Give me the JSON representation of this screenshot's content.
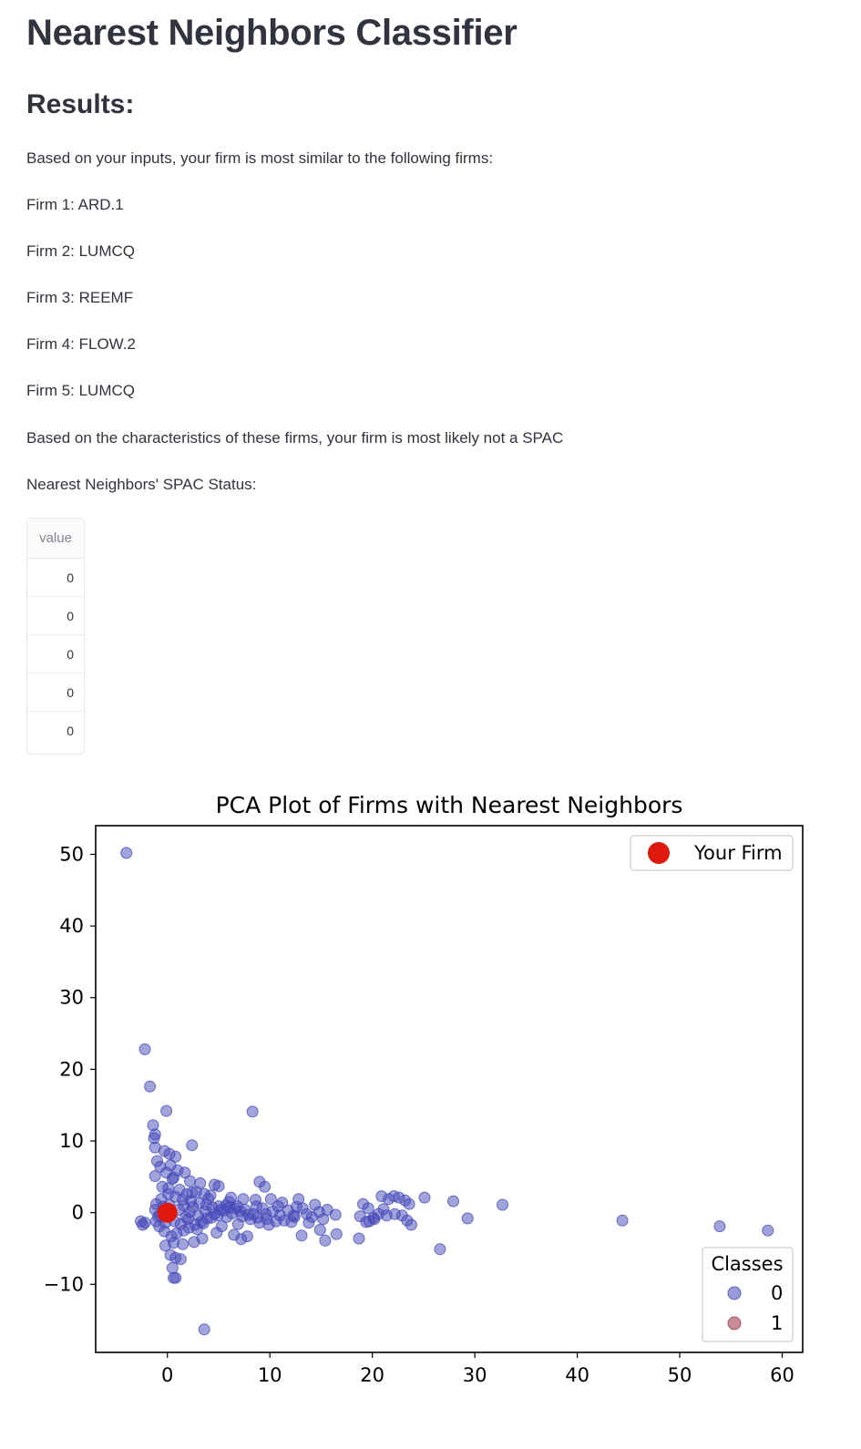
{
  "page": {
    "title": "Nearest Neighbors Classifier",
    "results_heading": "Results:",
    "intro": "Based on your inputs, your firm is most similar to the following firms:",
    "firms": [
      "Firm 1: ARD.1",
      "Firm 2: LUMCQ",
      "Firm 3: REEMF",
      "Firm 4: FLOW.2",
      "Firm 5: LUMCQ"
    ],
    "conclusion": "Based on the characteristics of these firms, your firm is most likely not a SPAC",
    "status_label": "Nearest Neighbors' SPAC Status:",
    "table": {
      "header": "value",
      "rows": [
        "0",
        "0",
        "0",
        "0",
        "0"
      ]
    }
  },
  "chart_data": {
    "type": "scatter",
    "title": "PCA Plot of Firms with Nearest Neighbors",
    "xlabel": "",
    "ylabel": "",
    "xlim": [
      -7,
      62
    ],
    "ylim": [
      -19.5,
      54
    ],
    "xticks": [
      0,
      10,
      20,
      30,
      40,
      50,
      60
    ],
    "yticks": [
      -10,
      0,
      10,
      20,
      30,
      40,
      50
    ],
    "grid": false,
    "legends": [
      {
        "placement": "top-right",
        "entries": [
          {
            "label": "Your Firm",
            "color": "#e0190f"
          }
        ]
      },
      {
        "placement": "bottom-right",
        "title": "Classes",
        "entries": [
          {
            "label": "0",
            "color": "#4448b8"
          },
          {
            "label": "1",
            "color": "#a03d4c"
          }
        ]
      }
    ],
    "series": [
      {
        "name": "0",
        "color": "#4448b8",
        "points": [
          [
            -4,
            50.2
          ],
          [
            -2.2,
            22.8
          ],
          [
            -1.7,
            17.6
          ],
          [
            -0.1,
            14.2
          ],
          [
            8.3,
            14.1
          ],
          [
            -1.4,
            12.2
          ],
          [
            -1.2,
            10.9
          ],
          [
            -1.3,
            10.4
          ],
          [
            2.4,
            9.4
          ],
          [
            -1.2,
            9.1
          ],
          [
            -0.3,
            8.6
          ],
          [
            0.2,
            8.2
          ],
          [
            0.8,
            7.8
          ],
          [
            -1,
            7.2
          ],
          [
            -0.7,
            6.4
          ],
          [
            0.3,
            6.6
          ],
          [
            1,
            5.9
          ],
          [
            1.7,
            5.6
          ],
          [
            -1.2,
            5.1
          ],
          [
            0.5,
            4.7
          ],
          [
            2.2,
            4.4
          ],
          [
            3.2,
            4.1
          ],
          [
            4.6,
            3.9
          ],
          [
            5,
            3.7
          ],
          [
            9,
            4.3
          ],
          [
            9.5,
            3.6
          ],
          [
            -0.5,
            3.6
          ],
          [
            1.2,
            3.2
          ],
          [
            2.8,
            2.9
          ],
          [
            3.6,
            2.6
          ],
          [
            4.2,
            2.4
          ],
          [
            6.2,
            2.1
          ],
          [
            7.4,
            1.9
          ],
          [
            8.6,
            1.8
          ],
          [
            10.1,
            1.9
          ],
          [
            12.8,
            1.9
          ],
          [
            14.4,
            1.1
          ],
          [
            11.2,
            1.4
          ],
          [
            13.2,
            0.6
          ],
          [
            16.4,
            -0.3
          ],
          [
            15.2,
            -0.9
          ],
          [
            13.8,
            -1.4
          ],
          [
            12.1,
            -1.3
          ],
          [
            10.6,
            -1.2
          ],
          [
            9.7,
            -0.9
          ],
          [
            8.8,
            -0.7
          ],
          [
            7.9,
            -0.3
          ],
          [
            7.1,
            0.2
          ],
          [
            6.6,
            0.6
          ],
          [
            5.7,
            1
          ],
          [
            5.2,
            0.4
          ],
          [
            4.6,
            -0.2
          ],
          [
            3.9,
            -0.8
          ],
          [
            3.3,
            -1.3
          ],
          [
            2.7,
            -1.7
          ],
          [
            2.1,
            -2.1
          ],
          [
            1.6,
            -2.5
          ],
          [
            0.9,
            -2.9
          ],
          [
            0.4,
            -3.3
          ],
          [
            -0.3,
            -2.6
          ],
          [
            -0.8,
            -1.9
          ],
          [
            -1.1,
            -1.2
          ],
          [
            -0.9,
            -0.5
          ],
          [
            -1.2,
            0.4
          ],
          [
            -1.1,
            1.2
          ],
          [
            -0.6,
            1.9
          ],
          [
            0.1,
            2.6
          ],
          [
            0.8,
            2.2
          ],
          [
            1.5,
            1.8
          ],
          [
            2.3,
            1.6
          ],
          [
            3.1,
            1.3
          ],
          [
            3.8,
            1.1
          ],
          [
            4.4,
            0.7
          ],
          [
            5.5,
            0.3
          ],
          [
            6.3,
            -0.1
          ],
          [
            7.3,
            -0.5
          ],
          [
            8.1,
            -0.9
          ],
          [
            9,
            -1.4
          ],
          [
            9.9,
            -1.7
          ],
          [
            11.4,
            -1.1
          ],
          [
            12.4,
            -0.6
          ],
          [
            13.6,
            -0.2
          ],
          [
            14.8,
            0.1
          ],
          [
            15.6,
            0.4
          ],
          [
            13.1,
            -3.2
          ],
          [
            14.9,
            -2.4
          ],
          [
            15.4,
            -3.9
          ],
          [
            16.5,
            -3
          ],
          [
            7.2,
            -3.7
          ],
          [
            7.8,
            -3.3
          ],
          [
            6.5,
            -3.1
          ],
          [
            4.8,
            -2.8
          ],
          [
            3.4,
            -3.6
          ],
          [
            2.6,
            -4.1
          ],
          [
            1.5,
            -4.4
          ],
          [
            0.6,
            -4.2
          ],
          [
            -0.2,
            -4.6
          ],
          [
            0.3,
            -5.9
          ],
          [
            0.8,
            -6.3
          ],
          [
            1.3,
            -6.5
          ],
          [
            0.5,
            -7.7
          ],
          [
            0.6,
            -9.1
          ],
          [
            0.8,
            -9.1
          ],
          [
            3.6,
            -16.3
          ],
          [
            -2.6,
            -1.2
          ],
          [
            -2.4,
            -1.7
          ],
          [
            -2.2,
            -1.4
          ],
          [
            19.1,
            1.2
          ],
          [
            19.6,
            0.6
          ],
          [
            18.8,
            -0.5
          ],
          [
            19.4,
            -1.3
          ],
          [
            18.7,
            -3.6
          ],
          [
            20.1,
            -0.7
          ],
          [
            20.6,
            -0.2
          ],
          [
            21.1,
            0.5
          ],
          [
            21.6,
            1.9
          ],
          [
            22.1,
            2.3
          ],
          [
            22.6,
            2.1
          ],
          [
            23.2,
            1.7
          ],
          [
            23.6,
            1.2
          ],
          [
            22.2,
            -0.2
          ],
          [
            22.9,
            -0.4
          ],
          [
            23.4,
            -1.1
          ],
          [
            23.8,
            -1.7
          ],
          [
            21.4,
            -0.4
          ],
          [
            20.9,
            2.3
          ],
          [
            19.7,
            -1.2
          ],
          [
            20.2,
            -0.9
          ],
          [
            25.1,
            2.1
          ],
          [
            27.9,
            1.6
          ],
          [
            29.3,
            -0.8
          ],
          [
            32.7,
            1.1
          ],
          [
            26.6,
            -5.1
          ],
          [
            44.4,
            -1.1
          ],
          [
            53.9,
            -1.9
          ],
          [
            58.6,
            -2.5
          ],
          [
            0.4,
            -0.2
          ],
          [
            1.1,
            0.4
          ],
          [
            1.8,
            -0.6
          ],
          [
            2.5,
            0.8
          ],
          [
            3,
            -0.4
          ],
          [
            3.7,
            0.2
          ],
          [
            4.3,
            -0.7
          ],
          [
            5,
            0.9
          ],
          [
            5.8,
            -0.6
          ],
          [
            6.8,
            0.9
          ],
          [
            7.6,
            0.4
          ],
          [
            8.4,
            -0.2
          ],
          [
            9.3,
            0.6
          ],
          [
            10.3,
            0.2
          ],
          [
            11,
            -0.4
          ],
          [
            11.8,
            0.3
          ],
          [
            12.6,
            0.8
          ],
          [
            0.2,
            1.1
          ],
          [
            -0.4,
            0.8
          ],
          [
            0.7,
            -1.2
          ],
          [
            1.3,
            -1.6
          ],
          [
            2,
            -0.9
          ],
          [
            2.9,
            -2.3
          ],
          [
            -0.2,
            -1.4
          ],
          [
            0.1,
            3.4
          ],
          [
            0.6,
            4.9
          ],
          [
            -0.1,
            5.6
          ],
          [
            1.9,
            2.6
          ],
          [
            4,
            1.9
          ],
          [
            6,
            1.5
          ],
          [
            6.9,
            -1.6
          ],
          [
            5.3,
            -1.9
          ],
          [
            10.8,
            0.9
          ],
          [
            12.3,
            -0.4
          ],
          [
            14.1,
            -0.6
          ],
          [
            9.6,
            -0.2
          ],
          [
            8.7,
            0.9
          ],
          [
            2.2,
            0.1
          ],
          [
            3.5,
            -1.5
          ],
          [
            4.9,
            -0.4
          ],
          [
            6.1,
            0.8
          ],
          [
            0,
            0.5
          ],
          [
            -0.7,
            -0.3
          ],
          [
            1.6,
            1
          ],
          [
            2.4,
            2.8
          ]
        ]
      },
      {
        "name": "Your Firm",
        "color": "#e0190f",
        "points": [
          [
            0,
            0
          ]
        ]
      }
    ]
  }
}
